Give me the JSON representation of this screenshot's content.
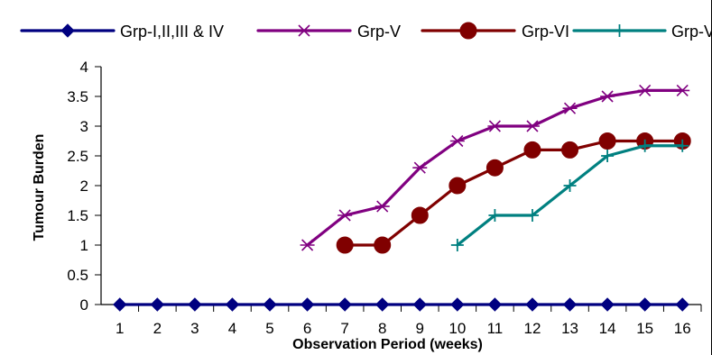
{
  "chart_data": {
    "type": "line",
    "title": "",
    "xlabel": "Observation Period (weeks)",
    "ylabel": "Tumour Burden",
    "categories": [
      "1",
      "2",
      "3",
      "4",
      "5",
      "6",
      "7",
      "8",
      "9",
      "10",
      "11",
      "12",
      "13",
      "14",
      "15",
      "16"
    ],
    "ylim": [
      0,
      4
    ],
    "yticks": [
      "0",
      "0.5",
      "1",
      "1.5",
      "2",
      "2.5",
      "3",
      "3.5",
      "4"
    ],
    "legend_position": "top",
    "grid": false,
    "series": [
      {
        "name": "Grp-I,II,III & IV",
        "color": "#000080",
        "marker": "diamond",
        "values": [
          0,
          0,
          0,
          0,
          0,
          0,
          0,
          0,
          0,
          0,
          0,
          0,
          0,
          0,
          0,
          0
        ]
      },
      {
        "name": "Grp-V",
        "color": "#800080",
        "marker": "asterisk",
        "values": [
          null,
          null,
          null,
          null,
          null,
          1,
          1.5,
          1.65,
          2.3,
          2.75,
          3,
          3,
          3.3,
          3.5,
          3.6,
          3.6
        ]
      },
      {
        "name": "Grp-VI",
        "color": "#800000",
        "marker": "circle",
        "values": [
          null,
          null,
          null,
          null,
          null,
          null,
          1,
          1,
          1.5,
          2,
          2.3,
          2.6,
          2.6,
          2.75,
          2.75,
          2.75
        ]
      },
      {
        "name": "Grp-VII",
        "color": "#008080",
        "marker": "plus",
        "values": [
          null,
          null,
          null,
          null,
          null,
          null,
          null,
          null,
          null,
          1,
          1.5,
          1.5,
          2,
          2.5,
          2.67,
          2.67
        ]
      }
    ]
  }
}
